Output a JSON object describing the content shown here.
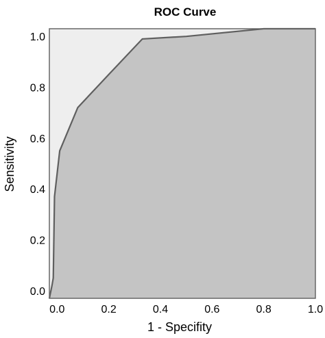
{
  "chart_data": {
    "type": "area",
    "title": "ROC Curve",
    "xlabel": "1 - Specifity",
    "ylabel": "Sensitivity",
    "xlim": [
      -0.03,
      1.0
    ],
    "ylim": [
      -0.03,
      1.03
    ],
    "xticks": [
      "0.0",
      "0.2",
      "0.4",
      "0.6",
      "0.8",
      "1.0"
    ],
    "yticks": [
      "0.0",
      "0.2",
      "0.4",
      "0.6",
      "0.8",
      "1.0"
    ],
    "series": [
      {
        "x": [
          -0.03,
          -0.02,
          -0.015,
          -0.01,
          0.01,
          0.08,
          0.2,
          0.33,
          0.5,
          0.8,
          1.0
        ],
        "y": [
          -0.03,
          0.02,
          0.05,
          0.37,
          0.55,
          0.72,
          0.85,
          0.99,
          1.0,
          1.03,
          1.03
        ]
      }
    ],
    "grid": false,
    "colors": {
      "plot_background": "#eeeeee",
      "area_fill": "#c4c4c4",
      "curve": "#5f5f5f",
      "frame": "#666666"
    }
  }
}
